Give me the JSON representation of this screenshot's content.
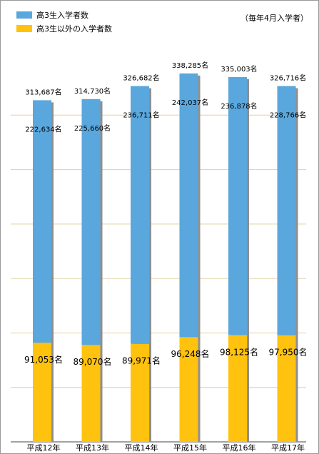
{
  "chart_data": {
    "type": "bar",
    "stacked": true,
    "title": "",
    "note": "（毎年4月入学者）",
    "categories": [
      "平成12年",
      "平成13年",
      "平成14年",
      "平成15年",
      "平成16年",
      "平成17年"
    ],
    "totals": [
      313687,
      314730,
      326682,
      338285,
      335003,
      326716
    ],
    "series": [
      {
        "name": "高3生以外の入学者数",
        "color": "#ffc20e",
        "values": [
          91053,
          89070,
          89971,
          96248,
          98125,
          97950
        ]
      },
      {
        "name": "高3生入学者数",
        "color": "#5aa7dd",
        "values": [
          222634,
          225660,
          236711,
          242037,
          236878,
          228766
        ]
      }
    ],
    "unit": "名",
    "ylim": [
      0,
      350000
    ],
    "gridlines": true,
    "gridline_color": "#e3cfa0",
    "legend_position": "top-left"
  }
}
